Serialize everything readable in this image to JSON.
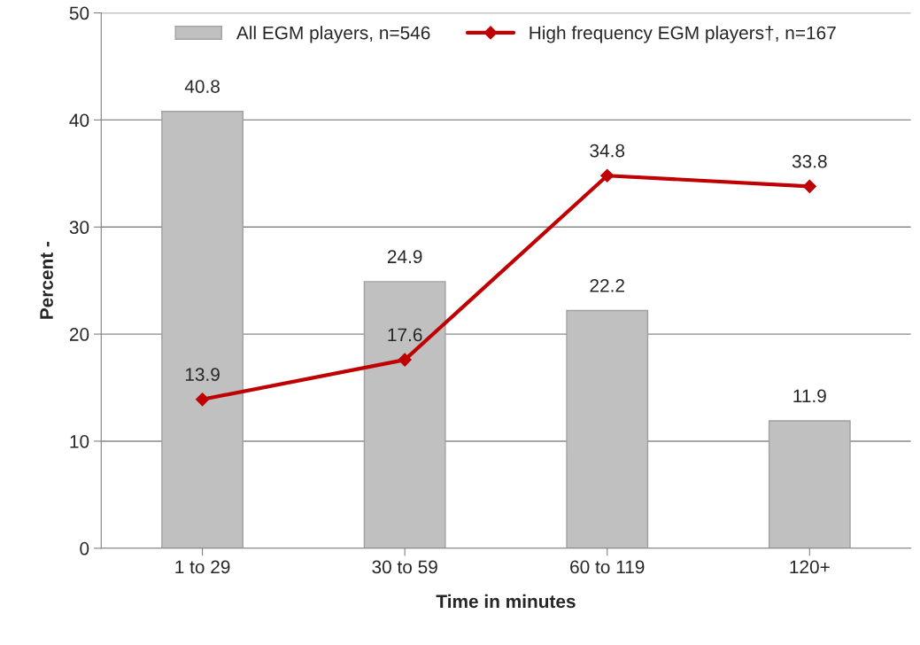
{
  "chart_data": {
    "type": "bar",
    "xlabel": "Time in minutes",
    "ylabel": "Percent -",
    "categories": [
      "1 to 29",
      "30 to 59",
      "60 to 119",
      "120+"
    ],
    "series": [
      {
        "name": "All EGM players, n=546",
        "color": "#c0c0c0",
        "values": [
          40.8,
          24.9,
          22.2,
          11.9
        ]
      },
      {
        "name": "High frequency EGM players†, n=167",
        "type": "line",
        "color": "#c00000",
        "marker": "diamond",
        "values": [
          13.9,
          17.6,
          34.8,
          33.8
        ]
      }
    ],
    "ylim": [
      0,
      50
    ],
    "yticks": [
      0,
      10,
      20,
      30,
      40,
      50
    ],
    "grid": "y",
    "legend": "top",
    "data_labels": true
  }
}
